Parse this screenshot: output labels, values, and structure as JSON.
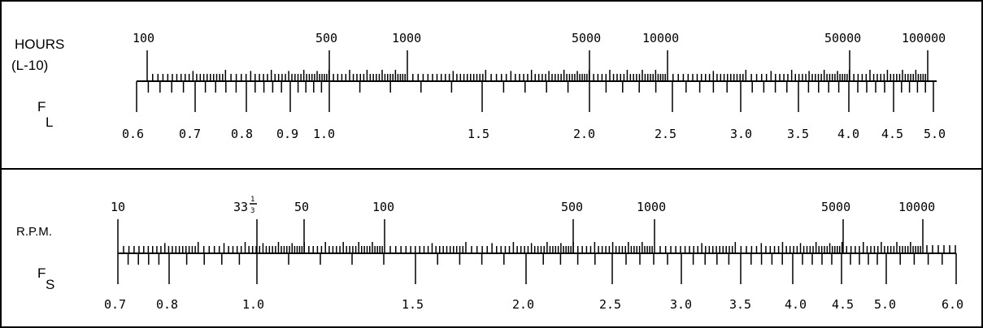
{
  "life_panel": {
    "title": "HOURS",
    "subtitle": "(L-10)",
    "factor_main": "F",
    "factor_sub": "L",
    "hours_labels": [
      "100",
      "500",
      "1000",
      "5000",
      "10000",
      "50000",
      "100000"
    ],
    "fl_labels": [
      "0.6",
      "0.7",
      "0.8",
      "0.9",
      "1.0",
      "1.5",
      "2.0",
      "2.5",
      "3.0",
      "3.5",
      "4.0",
      "4.5",
      "5.0"
    ]
  },
  "speed_panel": {
    "title": "R.P.M.",
    "factor_main": "F",
    "factor_sub": "S",
    "rpm_labels": [
      "10",
      "33",
      "50",
      "100",
      "500",
      "1000",
      "5000",
      "10000"
    ],
    "rpm_fraction": {
      "num": "1",
      "den": "3"
    },
    "fs_labels": [
      "0.7",
      "0.8",
      "1.0",
      "1.5",
      "2.0",
      "2.5",
      "3.0",
      "3.5",
      "4.0",
      "4.5",
      "5.0",
      "6.0"
    ]
  }
}
